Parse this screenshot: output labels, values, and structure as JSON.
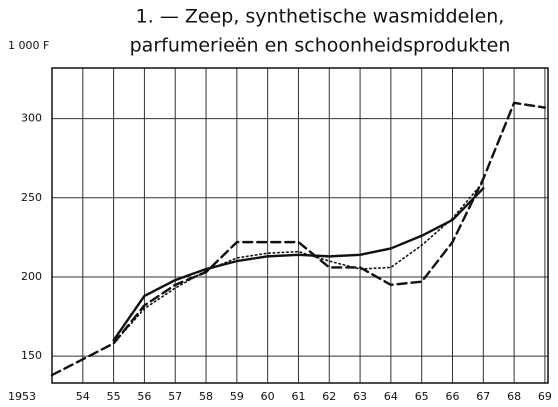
{
  "chart_data": {
    "type": "line",
    "title": [
      "1. — Zeep, synthetische wasmiddelen,",
      "parfumerieën en schoonheidsprodukten"
    ],
    "y_label": "1 000 F",
    "x": [
      1953,
      1954,
      1955,
      1956,
      1957,
      1958,
      1959,
      1960,
      1961,
      1962,
      1963,
      1964,
      1965,
      1966,
      1967,
      1968,
      1969
    ],
    "series": [
      {
        "color": "#111111",
        "dash": "solid",
        "values": [
          null,
          null,
          160,
          188,
          198,
          205,
          210,
          213,
          214,
          213,
          214,
          218,
          226,
          236,
          256,
          null,
          null
        ]
      },
      {
        "color": "#111111",
        "dash": "dashed",
        "values": [
          138,
          148,
          158,
          182,
          195,
          203,
          222,
          222,
          222,
          206,
          206,
          195,
          197,
          222,
          262,
          310,
          307
        ]
      },
      {
        "color": "#111111",
        "dash": "dotted",
        "values": [
          null,
          null,
          158,
          180,
          193,
          204,
          212,
          215,
          216,
          210,
          205,
          206,
          220,
          237,
          260,
          null,
          null
        ]
      }
    ],
    "xlim": [
      1953,
      1969.1
    ],
    "xticks": [
      1953,
      {
        "value": 1954,
        "label": "54"
      },
      {
        "value": 1955,
        "label": "55"
      },
      {
        "value": 1956,
        "label": "56"
      },
      {
        "value": 1957,
        "label": "57"
      },
      {
        "value": 1958,
        "label": "58"
      },
      {
        "value": 1959,
        "label": "59"
      },
      {
        "value": 1960,
        "label": "60"
      },
      {
        "value": 1961,
        "label": "61"
      },
      {
        "value": 1962,
        "label": "62"
      },
      {
        "value": 1963,
        "label": "63"
      },
      {
        "value": 1964,
        "label": "64"
      },
      {
        "value": 1965,
        "label": "65"
      },
      {
        "value": 1966,
        "label": "66"
      },
      {
        "value": 1967,
        "label": "67"
      },
      {
        "value": 1968,
        "label": "68"
      },
      {
        "value": 1969,
        "label": "69"
      }
    ],
    "ylim": [
      133,
      332
    ],
    "yticks": [
      150,
      200,
      250,
      300
    ],
    "grid": true
  }
}
